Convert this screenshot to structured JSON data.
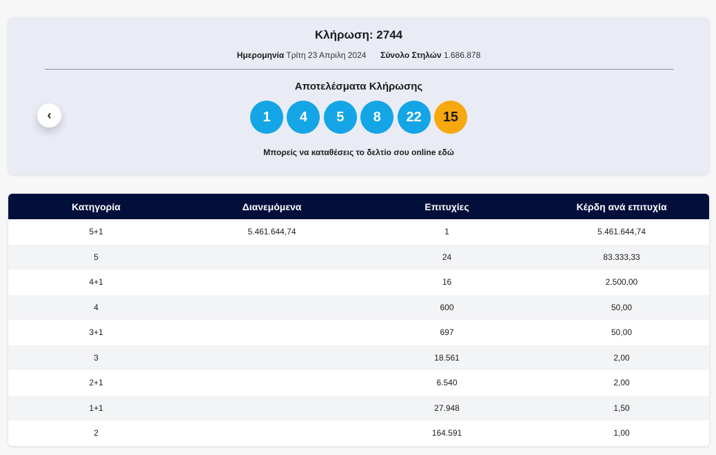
{
  "draw": {
    "title": "Κλήρωση: 2744",
    "date_label": "Ημερομηνία",
    "date_value": "Τρίτη 23 Απριλη 2024",
    "columns_label": "Σύνολο Στηλών",
    "columns_value": "1.686.878",
    "results_heading": "Αποτελέσματα Κλήρωσης",
    "numbers": [
      "1",
      "4",
      "5",
      "8",
      "22"
    ],
    "bonus": "15",
    "online_text": "Μπορείς να καταθέσεις το δελτίο σου online",
    "online_link": "εδώ",
    "prev_icon": "chevron-left-icon",
    "prev_glyph": "‹"
  },
  "colors": {
    "ball": "#14a5e6",
    "bonus_ball": "#f7a80e",
    "table_header": "#020f3b",
    "card_bg": "#e9ecf5"
  },
  "table": {
    "headers": [
      "Κατηγορία",
      "Διανεμόμενα",
      "Επιτυχίες",
      "Κέρδη ανά επιτυχία"
    ],
    "rows": [
      [
        "5+1",
        "5.461.644,74",
        "1",
        "5.461.644,74"
      ],
      [
        "5",
        "",
        "24",
        "83.333,33"
      ],
      [
        "4+1",
        "",
        "16",
        "2.500,00"
      ],
      [
        "4",
        "",
        "600",
        "50,00"
      ],
      [
        "3+1",
        "",
        "697",
        "50,00"
      ],
      [
        "3",
        "",
        "18.561",
        "2,00"
      ],
      [
        "2+1",
        "",
        "6.540",
        "2,00"
      ],
      [
        "1+1",
        "",
        "27.948",
        "1,50"
      ],
      [
        "2",
        "",
        "164.591",
        "1,00"
      ]
    ]
  }
}
